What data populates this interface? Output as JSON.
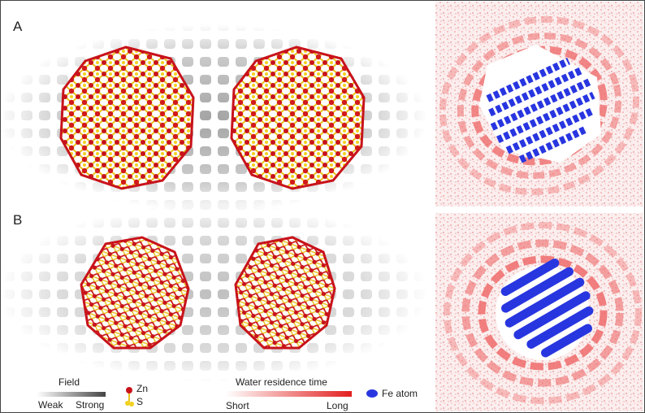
{
  "labels": {
    "panel_a": "A",
    "panel_b": "B"
  },
  "legend": {
    "field_title": "Field",
    "field_weak": "Weak",
    "field_strong": "Strong",
    "zn": "Zn",
    "s": "S",
    "residence_title": "Water residence time",
    "short": "Short",
    "long": "Long",
    "fe": "Fe atom"
  }
}
